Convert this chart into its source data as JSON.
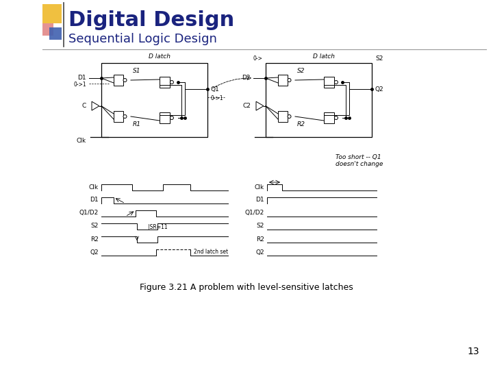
{
  "title": "Digital Design",
  "subtitle": "Sequential Logic Design",
  "figure_caption": "Figure 3.21 A problem with level-sensitive latches",
  "page_number": "13",
  "bg_color": "#ffffff",
  "title_color": "#1a237e",
  "subtitle_color": "#1a237e",
  "title_fontsize": 22,
  "subtitle_fontsize": 13,
  "caption_fontsize": 9,
  "page_fontsize": 10,
  "logo_yellow": "#f0c040",
  "logo_red": "#e08080",
  "logo_blue": "#4060b0",
  "lw": 0.7
}
